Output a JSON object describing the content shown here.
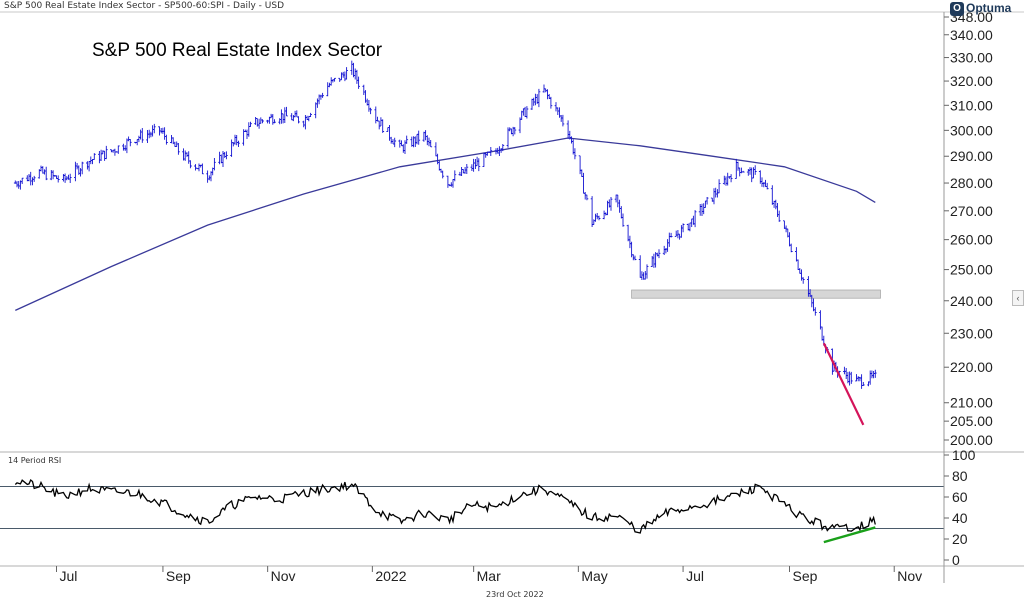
{
  "header": {
    "info": "S&P 500 Real Estate Index Sector - SP500-60:SPI - Daily - USD",
    "brand": "Optuma",
    "brand_icon": "optuma-logo-icon"
  },
  "footer": {
    "date": "23rd Oct 2022"
  },
  "colors": {
    "price": "#1414d2",
    "ma": "#3a3a9a",
    "rsi": "#000000",
    "support_zone": "#d6d6d6",
    "trend_down": "#d4145a",
    "trend_up": "#1aa01a",
    "threshold": "#4a5a6a"
  },
  "chart_data": [
    {
      "type": "line",
      "title": "S&P 500 Real Estate Index Sector",
      "xlabel": "",
      "ylabel": "",
      "x_tick_labels": [
        "Jul",
        "Sep",
        "Nov",
        "2022",
        "Mar",
        "May",
        "Jul",
        "Sep",
        "Nov"
      ],
      "y_tick_labels": [
        "348.00",
        "340.00",
        "330.00",
        "320.00",
        "310.00",
        "300.00",
        "290.00",
        "280.00",
        "270.00",
        "260.00",
        "250.00",
        "240.00",
        "230.00",
        "220.00",
        "210.00",
        "205.00",
        "200.00"
      ],
      "y_scale": "log",
      "ylim": [
        200,
        348
      ],
      "grid": false,
      "series": [
        {
          "style": "daily-bars",
          "x": [
            "2021-06-07",
            "2021-06-21",
            "2021-07-05",
            "2021-07-19",
            "2021-08-02",
            "2021-08-16",
            "2021-08-30",
            "2021-09-13",
            "2021-09-27",
            "2021-10-11",
            "2021-10-25",
            "2021-11-08",
            "2021-11-22",
            "2021-12-06",
            "2021-12-20",
            "2022-01-03",
            "2022-01-17",
            "2022-01-31",
            "2022-02-14",
            "2022-02-28",
            "2022-03-14",
            "2022-03-28",
            "2022-04-11",
            "2022-04-25",
            "2022-05-09",
            "2022-05-23",
            "2022-06-06",
            "2022-06-20",
            "2022-07-04",
            "2022-07-18",
            "2022-08-01",
            "2022-08-15",
            "2022-08-29",
            "2022-09-12",
            "2022-09-26",
            "2022-10-10",
            "2022-10-21"
          ],
          "values": [
            280,
            284,
            281,
            288,
            292,
            297,
            300,
            290,
            283,
            294,
            303,
            306,
            304,
            318,
            325,
            305,
            293,
            298,
            280,
            286,
            292,
            305,
            316,
            300,
            266,
            274,
            247,
            258,
            265,
            275,
            286,
            282,
            264,
            242,
            220,
            216,
            217
          ]
        },
        {
          "style": "moving-average",
          "x": [
            "2021-06-07",
            "2021-08-02",
            "2021-09-27",
            "2021-11-22",
            "2022-01-17",
            "2022-03-14",
            "2022-04-25",
            "2022-06-06",
            "2022-07-18",
            "2022-08-29",
            "2022-10-10",
            "2022-10-21"
          ],
          "values": [
            237,
            251,
            265,
            276,
            286,
            292,
            297,
            294,
            290,
            286,
            277,
            273
          ]
        }
      ],
      "annotations": [
        {
          "kind": "support-zone",
          "y_range": [
            240.8,
            243.4
          ],
          "x_range": [
            "2022-06-01",
            "2022-10-24"
          ]
        },
        {
          "kind": "trendline",
          "from": [
            "2022-09-21",
            227
          ],
          "to": [
            "2022-10-14",
            204
          ]
        }
      ]
    },
    {
      "type": "line",
      "title": "14 Period RSI",
      "x_tick_labels": [
        "Jul",
        "Sep",
        "Nov",
        "2022",
        "Mar",
        "May",
        "Jul",
        "Sep",
        "Nov"
      ],
      "y_tick_labels": [
        "100",
        "80",
        "60",
        "40",
        "20",
        "0"
      ],
      "ylim": [
        0,
        100
      ],
      "reference_lines": [
        70,
        30
      ],
      "series": [
        {
          "x": [
            "2021-06-07",
            "2021-06-21",
            "2021-07-05",
            "2021-07-19",
            "2021-08-02",
            "2021-08-16",
            "2021-08-30",
            "2021-09-13",
            "2021-09-27",
            "2021-10-11",
            "2021-10-25",
            "2021-11-08",
            "2021-11-22",
            "2021-12-06",
            "2021-12-20",
            "2022-01-03",
            "2022-01-17",
            "2022-01-31",
            "2022-02-14",
            "2022-02-28",
            "2022-03-14",
            "2022-03-28",
            "2022-04-11",
            "2022-04-25",
            "2022-05-09",
            "2022-05-23",
            "2022-06-06",
            "2022-06-20",
            "2022-07-04",
            "2022-07-18",
            "2022-08-01",
            "2022-08-15",
            "2022-08-29",
            "2022-09-12",
            "2022-09-26",
            "2022-10-10",
            "2022-10-21"
          ],
          "values": [
            76,
            70,
            60,
            68,
            65,
            64,
            56,
            45,
            36,
            52,
            60,
            58,
            64,
            68,
            72,
            48,
            36,
            45,
            38,
            52,
            50,
            62,
            68,
            55,
            40,
            42,
            28,
            44,
            50,
            55,
            62,
            70,
            52,
            38,
            30,
            32,
            37
          ]
        }
      ],
      "annotations": [
        {
          "kind": "trendline",
          "from": [
            "2022-09-21",
            17
          ],
          "to": [
            "2022-10-21",
            31
          ]
        }
      ]
    }
  ]
}
